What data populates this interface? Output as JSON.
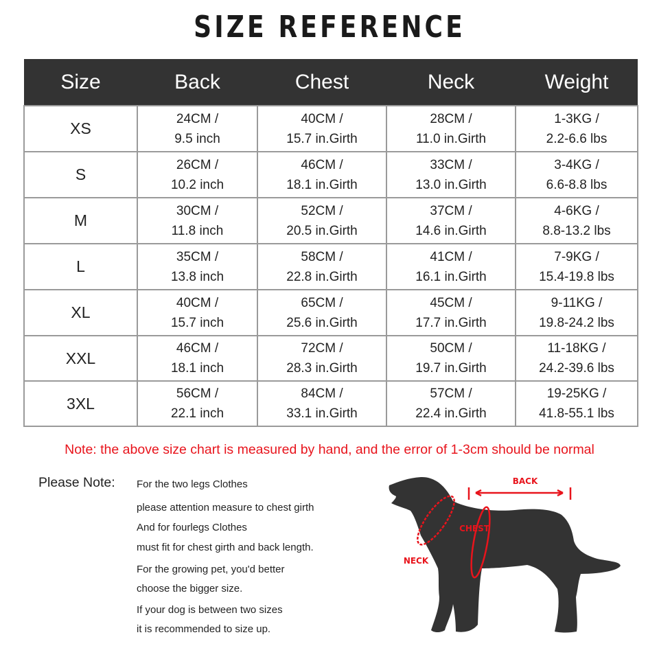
{
  "title": "SIZE REFERENCE",
  "table": {
    "headers": [
      "Size",
      "Back",
      "Chest",
      "Neck",
      "Weight"
    ],
    "rows": [
      {
        "size": "XS",
        "back": [
          "24CM /",
          "9.5 inch"
        ],
        "chest": [
          "40CM /",
          "15.7 in.Girth"
        ],
        "neck": [
          "28CM /",
          "11.0 in.Girth"
        ],
        "weight": [
          "1-3KG /",
          "2.2-6.6 lbs"
        ]
      },
      {
        "size": "S",
        "back": [
          "26CM /",
          "10.2 inch"
        ],
        "chest": [
          "46CM /",
          "18.1 in.Girth"
        ],
        "neck": [
          "33CM /",
          "13.0 in.Girth"
        ],
        "weight": [
          "3-4KG /",
          "6.6-8.8 lbs"
        ]
      },
      {
        "size": "M",
        "back": [
          "30CM /",
          "11.8 inch"
        ],
        "chest": [
          "52CM /",
          "20.5 in.Girth"
        ],
        "neck": [
          "37CM /",
          "14.6 in.Girth"
        ],
        "weight": [
          "4-6KG /",
          "8.8-13.2 lbs"
        ]
      },
      {
        "size": "L",
        "back": [
          "35CM /",
          "13.8 inch"
        ],
        "chest": [
          "58CM /",
          "22.8 in.Girth"
        ],
        "neck": [
          "41CM /",
          "16.1 in.Girth"
        ],
        "weight": [
          "7-9KG /",
          "15.4-19.8 lbs"
        ]
      },
      {
        "size": "XL",
        "back": [
          "40CM /",
          "15.7 inch"
        ],
        "chest": [
          "65CM /",
          "25.6 in.Girth"
        ],
        "neck": [
          "45CM /",
          "17.7 in.Girth"
        ],
        "weight": [
          "9-11KG /",
          "19.8-24.2 lbs"
        ]
      },
      {
        "size": "XXL",
        "back": [
          "46CM /",
          "18.1 inch"
        ],
        "chest": [
          "72CM /",
          "28.3 in.Girth"
        ],
        "neck": [
          "50CM /",
          "19.7 in.Girth"
        ],
        "weight": [
          "11-18KG /",
          "24.2-39.6 lbs"
        ]
      },
      {
        "size": "3XL",
        "back": [
          "56CM /",
          "22.1 inch"
        ],
        "chest": [
          "84CM /",
          "33.1 in.Girth"
        ],
        "neck": [
          "57CM /",
          "22.4 in.Girth"
        ],
        "weight": [
          "19-25KG /",
          "41.8-55.1 lbs"
        ]
      }
    ]
  },
  "note_red": "Note: the above size chart is measured by hand, and the error of 1-3cm should be normal",
  "please_note": "Please Note:",
  "notes": [
    "For the two legs Clothes",
    "please attention measure to chest girth",
    "And for fourlegs Clothes",
    "must fit for chest girth and back length.",
    "For the growing pet, you'd better",
    "choose the bigger size.",
    "If your dog is between two sizes",
    "it is recommended to size up."
  ],
  "diagram": {
    "back": "BACK",
    "chest": "CHEST",
    "neck": "NECK"
  },
  "colors": {
    "header_bg": "#333333",
    "accent_red": "#e8141c",
    "dog": "#333333"
  }
}
